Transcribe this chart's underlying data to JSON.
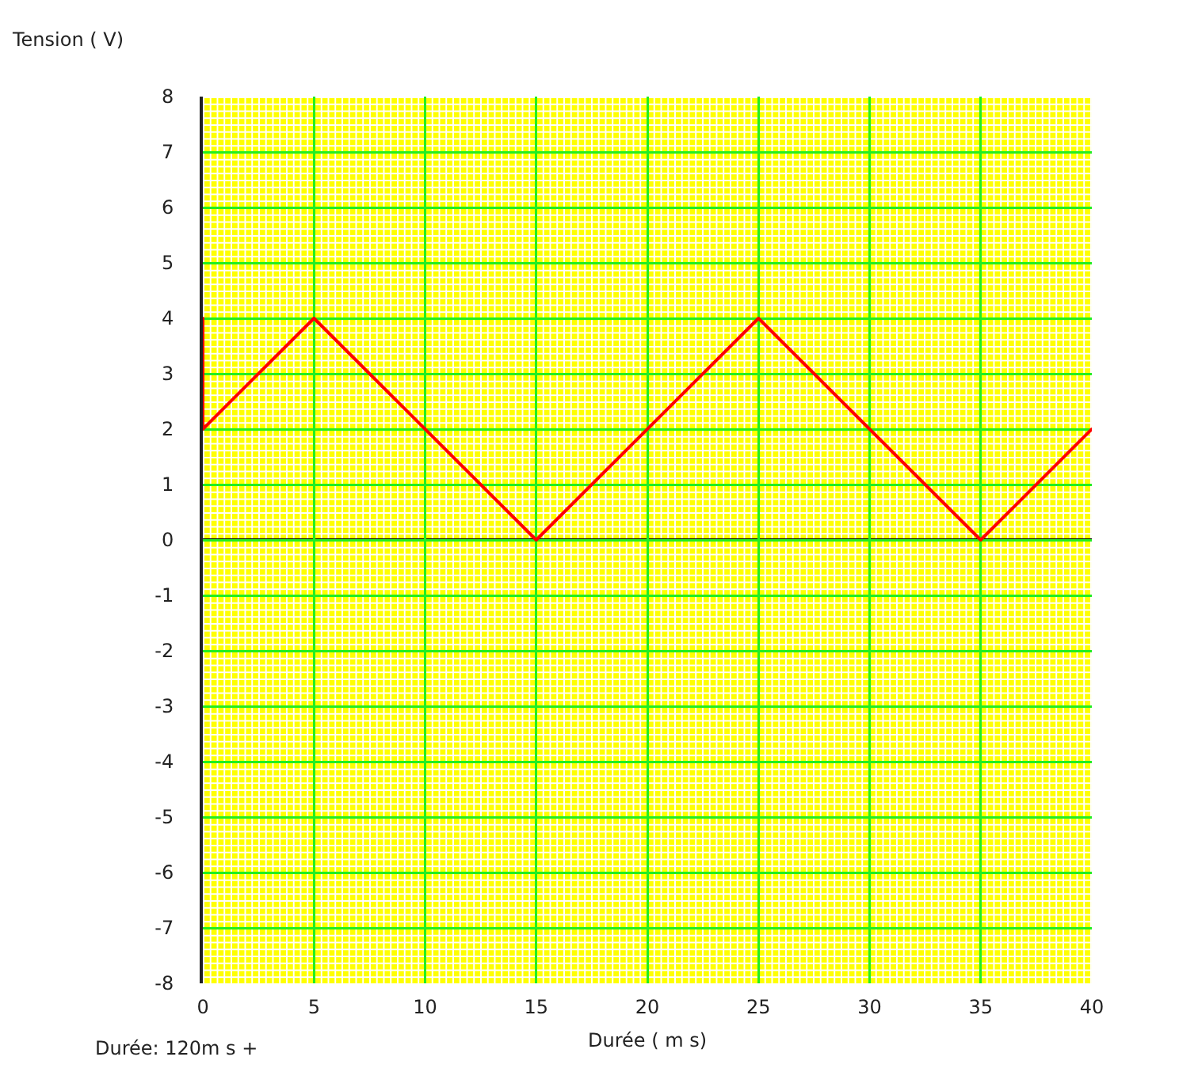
{
  "chart_data": {
    "type": "line",
    "xlabel": "Durée ( m s)",
    "ylabel": "Tension ( V)",
    "annotations": [
      "Durée: 120m s +"
    ],
    "x": [
      0,
      0,
      5,
      15,
      25,
      35,
      40
    ],
    "series": [
      {
        "color": "#ff0000",
        "values": [
          4,
          2,
          4,
          0,
          4,
          0,
          2
        ]
      }
    ],
    "xlim": [
      0,
      40
    ],
    "ylim": [
      -8,
      8
    ],
    "xticks": [
      0,
      5,
      10,
      15,
      20,
      25,
      30,
      35,
      40
    ],
    "yticks": [
      -8,
      -7,
      -6,
      -5,
      -4,
      -3,
      -2,
      -1,
      0,
      1,
      2,
      3,
      4,
      5,
      6,
      7,
      8
    ],
    "grid": true,
    "marker": "none",
    "line_style": "solid",
    "ref_lines": [
      {
        "axis": "y",
        "value": 0,
        "color": "#000000"
      }
    ]
  }
}
